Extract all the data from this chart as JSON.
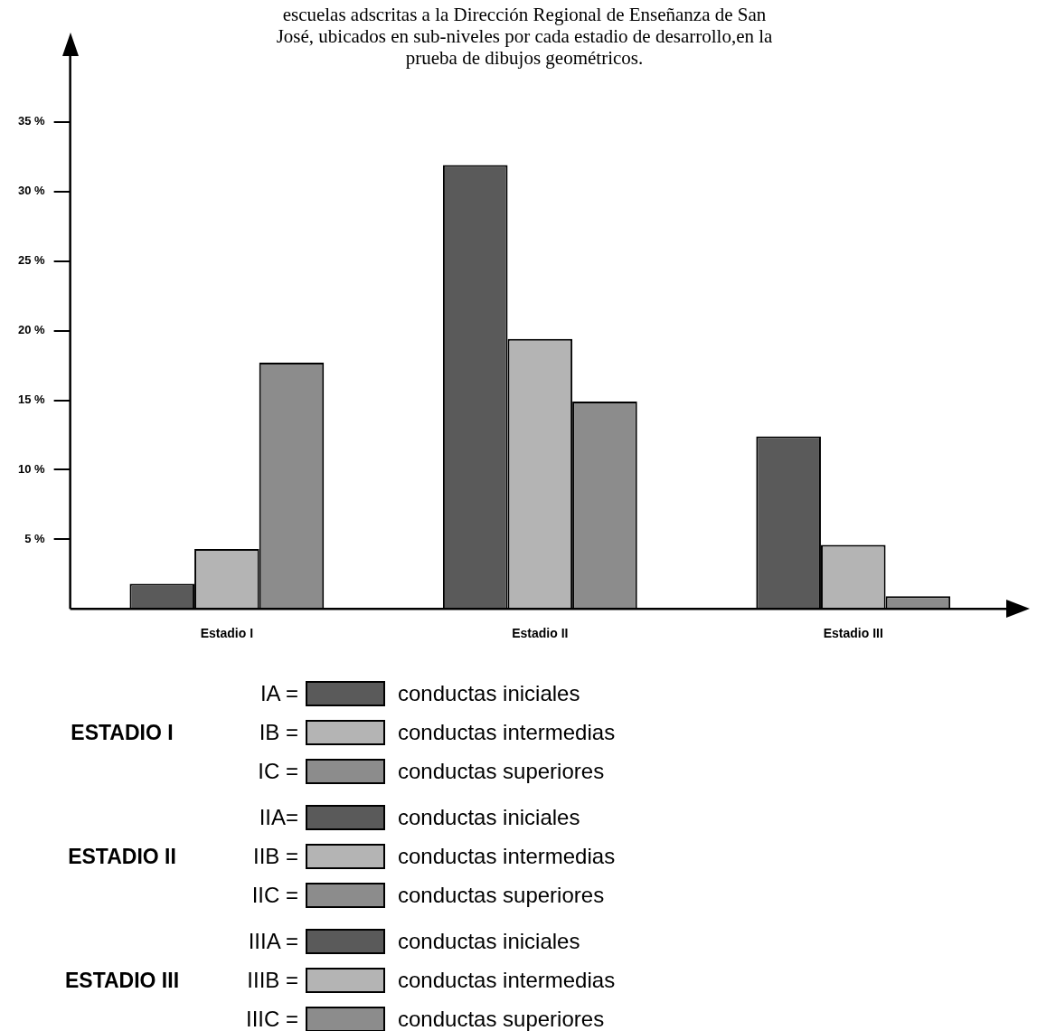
{
  "chart_data": {
    "type": "bar",
    "title": "escuelas adscritas a la Dirección Regional de Enseñanza de San José, ubicados en sub-niveles por cada estadio de desarrollo,en la prueba de dibujos geométricos.",
    "categories": [
      "Estadio I",
      "Estadio II",
      "Estadio III"
    ],
    "series": [
      {
        "name": "conductas iniciales",
        "color": "#5a5a5a",
        "values": [
          1.8,
          31.9,
          12.4
        ]
      },
      {
        "name": "conductas intermedias",
        "color": "#b4b4b4",
        "values": [
          4.3,
          19.4,
          4.6
        ]
      },
      {
        "name": "conductas superiores",
        "color": "#8c8c8c",
        "values": [
          17.7,
          14.9,
          0.9
        ]
      }
    ],
    "ylim": [
      0,
      40
    ],
    "yticks": [
      {
        "value": 5,
        "label": "5 %"
      },
      {
        "value": 10,
        "label": "10 %"
      },
      {
        "value": 15,
        "label": "15 %"
      },
      {
        "value": 20,
        "label": "20 %"
      },
      {
        "value": 25,
        "label": "25 %"
      },
      {
        "value": 30,
        "label": "30 %"
      },
      {
        "value": 35,
        "label": "35 %"
      }
    ],
    "grid": false,
    "legend": "bottom left",
    "annotations": [
      "ESTADIO I",
      "IA =",
      "IB =",
      "IC =",
      "ESTADIO II",
      "IIA=",
      "IIB =",
      "IIC =",
      "ESTADIO III",
      "IIIA =",
      "IIIB =",
      "IIIC ="
    ]
  }
}
